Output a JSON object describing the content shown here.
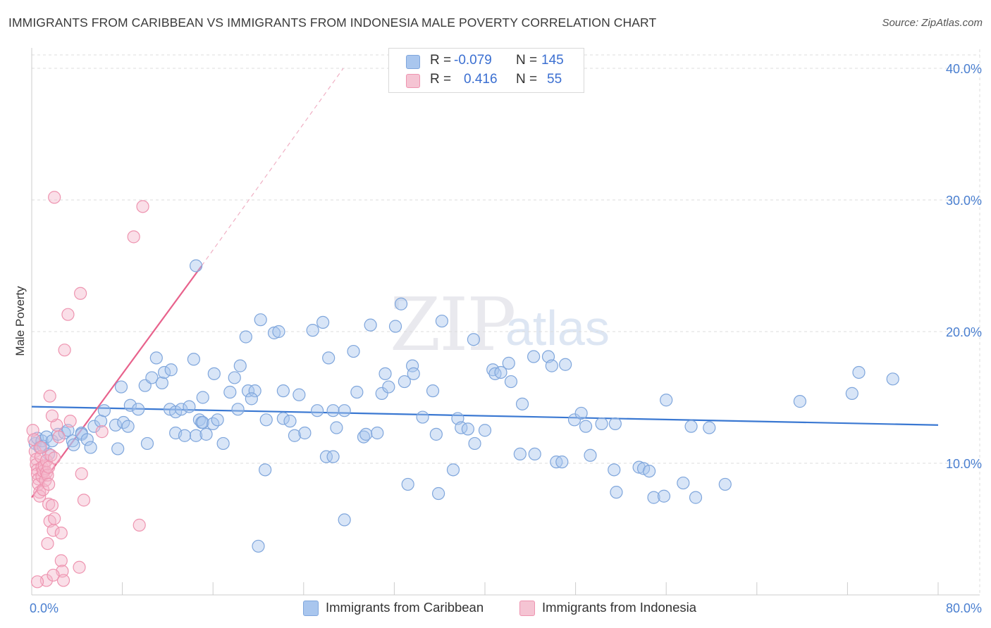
{
  "title": "IMMIGRANTS FROM CARIBBEAN VS IMMIGRANTS FROM INDONESIA MALE POVERTY CORRELATION CHART",
  "source": "Source: ZipAtlas.com",
  "watermark": {
    "zip": "ZIP",
    "atlas": "atlas"
  },
  "legend": {
    "rows": [
      {
        "r_label": "R =",
        "r_value": "-0.079",
        "n_label": "N =",
        "n_value": "145"
      },
      {
        "r_label": "R =",
        "r_value": "0.416",
        "n_label": "N =",
        "n_value": "55"
      }
    ]
  },
  "bottom_legend": [
    "Immigrants from Caribbean",
    "Immigrants from Indonesia"
  ],
  "colors": {
    "blue_fill": "#a9c6ee",
    "blue_stroke": "#7fa6dc",
    "blue_line": "#3a78d2",
    "pink_fill": "#f5b8cb",
    "pink_stroke": "#ee94b0",
    "pink_line": "#e8628c",
    "tick_text": "#4a7fd0",
    "grid": "#dcdcdc"
  },
  "chart_data": {
    "type": "scatter",
    "title": "IMMIGRANTS FROM CARIBBEAN VS IMMIGRANTS FROM INDONESIA MALE POVERTY CORRELATION CHART",
    "xlabel": "",
    "ylabel": "Male Poverty",
    "xlim": [
      0,
      80
    ],
    "ylim": [
      0,
      40
    ],
    "x_tick_labels": [
      "0.0%",
      "80.0%"
    ],
    "y_tick_labels": [
      "10.0%",
      "20.0%",
      "30.0%",
      "40.0%"
    ],
    "y_ticks": [
      10,
      20,
      30,
      40
    ],
    "series": [
      {
        "name": "Immigrants from Caribbean",
        "color": "blue",
        "R": -0.079,
        "N": 145,
        "trend": {
          "x0": 0,
          "y0": 14.3,
          "x1": 80,
          "y1": 12.9
        },
        "points": [
          [
            0.3,
            11.5
          ],
          [
            0.5,
            11.9
          ],
          [
            0.7,
            11.2
          ],
          [
            0.9,
            11.7
          ],
          [
            1.0,
            11.3
          ],
          [
            1.3,
            12.0
          ],
          [
            1.5,
            10.7
          ],
          [
            1.8,
            11.7
          ],
          [
            2.3,
            12.2
          ],
          [
            2.9,
            12.3
          ],
          [
            3.6,
            11.7
          ],
          [
            3.2,
            12.5
          ],
          [
            3.7,
            11.4
          ],
          [
            4.4,
            12.3
          ],
          [
            4.4,
            12.2
          ],
          [
            4.9,
            11.8
          ],
          [
            5.2,
            11.2
          ],
          [
            5.5,
            12.8
          ],
          [
            6.1,
            13.2
          ],
          [
            6.4,
            14.0
          ],
          [
            7.4,
            12.9
          ],
          [
            7.6,
            11.1
          ],
          [
            7.9,
            15.8
          ],
          [
            8.1,
            13.1
          ],
          [
            8.5,
            12.8
          ],
          [
            8.7,
            14.4
          ],
          [
            9.4,
            14.1
          ],
          [
            10.0,
            15.9
          ],
          [
            10.2,
            11.5
          ],
          [
            10.6,
            16.5
          ],
          [
            11.0,
            18.0
          ],
          [
            11.5,
            16.1
          ],
          [
            11.7,
            16.9
          ],
          [
            12.2,
            14.1
          ],
          [
            12.3,
            17.1
          ],
          [
            12.7,
            13.9
          ],
          [
            12.7,
            12.3
          ],
          [
            13.2,
            14.1
          ],
          [
            13.5,
            12.1
          ],
          [
            13.9,
            14.3
          ],
          [
            14.3,
            17.9
          ],
          [
            14.8,
            13.3
          ],
          [
            14.5,
            12.1
          ],
          [
            15.0,
            13.1
          ],
          [
            15.4,
            12.2
          ],
          [
            14.5,
            25.0
          ],
          [
            15.1,
            15.0
          ],
          [
            15.1,
            13.1
          ],
          [
            16.0,
            13.0
          ],
          [
            16.1,
            16.8
          ],
          [
            16.4,
            13.3
          ],
          [
            16.9,
            11.5
          ],
          [
            17.5,
            15.4
          ],
          [
            17.9,
            16.5
          ],
          [
            18.2,
            14.1
          ],
          [
            18.4,
            17.4
          ],
          [
            18.9,
            19.6
          ],
          [
            19.1,
            15.5
          ],
          [
            19.7,
            15.5
          ],
          [
            19.4,
            14.9
          ],
          [
            20.0,
            3.7
          ],
          [
            20.2,
            20.9
          ],
          [
            20.6,
            9.5
          ],
          [
            20.7,
            13.3
          ],
          [
            21.4,
            19.9
          ],
          [
            21.8,
            20.0
          ],
          [
            22.2,
            15.5
          ],
          [
            22.2,
            13.4
          ],
          [
            22.8,
            13.2
          ],
          [
            23.2,
            12.1
          ],
          [
            23.6,
            15.2
          ],
          [
            24.1,
            12.3
          ],
          [
            24.8,
            20.1
          ],
          [
            25.2,
            14.0
          ],
          [
            25.7,
            20.7
          ],
          [
            26.0,
            10.5
          ],
          [
            26.2,
            18.0
          ],
          [
            26.6,
            10.5
          ],
          [
            26.6,
            14.0
          ],
          [
            26.9,
            12.7
          ],
          [
            27.6,
            14.0
          ],
          [
            27.6,
            5.7
          ],
          [
            28.4,
            18.5
          ],
          [
            28.7,
            15.4
          ],
          [
            29.3,
            12.0
          ],
          [
            29.5,
            12.2
          ],
          [
            29.9,
            20.5
          ],
          [
            30.5,
            12.3
          ],
          [
            30.9,
            15.3
          ],
          [
            31.2,
            16.8
          ],
          [
            31.5,
            15.8
          ],
          [
            32.1,
            20.4
          ],
          [
            32.6,
            22.1
          ],
          [
            32.9,
            16.2
          ],
          [
            33.2,
            8.4
          ],
          [
            33.6,
            17.4
          ],
          [
            33.7,
            16.8
          ],
          [
            34.5,
            13.5
          ],
          [
            35.4,
            15.5
          ],
          [
            35.7,
            12.2
          ],
          [
            35.9,
            7.7
          ],
          [
            36.2,
            20.8
          ],
          [
            37.2,
            9.5
          ],
          [
            37.6,
            13.4
          ],
          [
            37.9,
            12.7
          ],
          [
            38.5,
            12.6
          ],
          [
            39.1,
            11.5
          ],
          [
            39.0,
            19.4
          ],
          [
            40.0,
            12.5
          ],
          [
            40.7,
            17.1
          ],
          [
            40.9,
            16.8
          ],
          [
            41.4,
            16.9
          ],
          [
            42.3,
            16.2
          ],
          [
            42.1,
            17.6
          ],
          [
            43.1,
            10.7
          ],
          [
            43.3,
            14.5
          ],
          [
            44.3,
            18.1
          ],
          [
            44.4,
            10.7
          ],
          [
            45.6,
            18.1
          ],
          [
            45.9,
            17.4
          ],
          [
            46.3,
            10.1
          ],
          [
            46.8,
            10.1
          ],
          [
            47.1,
            17.5
          ],
          [
            47.9,
            13.3
          ],
          [
            48.5,
            13.8
          ],
          [
            48.9,
            12.8
          ],
          [
            49.3,
            10.6
          ],
          [
            50.3,
            13.0
          ],
          [
            51.5,
            13.0
          ],
          [
            51.4,
            9.5
          ],
          [
            51.6,
            7.8
          ],
          [
            53.6,
            9.7
          ],
          [
            54.0,
            9.6
          ],
          [
            54.5,
            9.4
          ],
          [
            54.9,
            7.4
          ],
          [
            55.8,
            7.5
          ],
          [
            56.0,
            14.8
          ],
          [
            57.5,
            8.5
          ],
          [
            58.2,
            12.8
          ],
          [
            58.6,
            7.4
          ],
          [
            59.8,
            12.7
          ],
          [
            61.2,
            8.4
          ],
          [
            67.8,
            14.7
          ],
          [
            72.4,
            15.3
          ],
          [
            73.0,
            16.9
          ],
          [
            76.0,
            16.4
          ]
        ]
      },
      {
        "name": "Immigrants from Indonesia",
        "color": "pink",
        "R": 0.416,
        "N": 55,
        "trend": {
          "x0": 0,
          "y0": 7.4,
          "x1": 15.0,
          "y1": 25.0
        },
        "trend_ext": {
          "x0": 15.0,
          "y0": 25.0,
          "x1": 27.5,
          "y1": 40.0
        },
        "points": [
          [
            0.1,
            12.5
          ],
          [
            0.2,
            11.8
          ],
          [
            0.3,
            10.9
          ],
          [
            0.4,
            10.3
          ],
          [
            0.4,
            9.9
          ],
          [
            0.5,
            9.5
          ],
          [
            0.5,
            9.2
          ],
          [
            0.6,
            8.8
          ],
          [
            0.6,
            8.4
          ],
          [
            0.7,
            7.8
          ],
          [
            0.7,
            7.5
          ],
          [
            0.8,
            10.5
          ],
          [
            0.8,
            11.2
          ],
          [
            0.9,
            9.7
          ],
          [
            0.9,
            9.0
          ],
          [
            1.0,
            8.0
          ],
          [
            1.0,
            9.4
          ],
          [
            1.1,
            9.8
          ],
          [
            1.2,
            8.7
          ],
          [
            1.3,
            9.3
          ],
          [
            1.3,
            10.2
          ],
          [
            1.4,
            9.1
          ],
          [
            1.5,
            8.4
          ],
          [
            1.5,
            6.9
          ],
          [
            1.6,
            5.6
          ],
          [
            1.7,
            10.6
          ],
          [
            1.8,
            6.8
          ],
          [
            1.9,
            4.9
          ],
          [
            2.0,
            10.4
          ],
          [
            2.0,
            5.8
          ],
          [
            2.2,
            12.9
          ],
          [
            2.4,
            12.0
          ],
          [
            2.6,
            4.7
          ],
          [
            2.6,
            2.6
          ],
          [
            2.7,
            1.8
          ],
          [
            2.8,
            1.1
          ],
          [
            1.3,
            1.1
          ],
          [
            1.4,
            3.9
          ],
          [
            1.5,
            9.7
          ],
          [
            1.6,
            15.1
          ],
          [
            1.8,
            13.6
          ],
          [
            2.0,
            30.2
          ],
          [
            2.9,
            18.6
          ],
          [
            3.2,
            21.3
          ],
          [
            3.4,
            13.2
          ],
          [
            4.3,
            22.9
          ],
          [
            4.4,
            9.2
          ],
          [
            4.6,
            7.2
          ],
          [
            4.2,
            2.1
          ],
          [
            6.2,
            12.4
          ],
          [
            9.0,
            27.2
          ],
          [
            9.8,
            29.5
          ],
          [
            9.5,
            5.3
          ],
          [
            1.9,
            1.5
          ],
          [
            0.5,
            1.0
          ]
        ]
      }
    ]
  }
}
